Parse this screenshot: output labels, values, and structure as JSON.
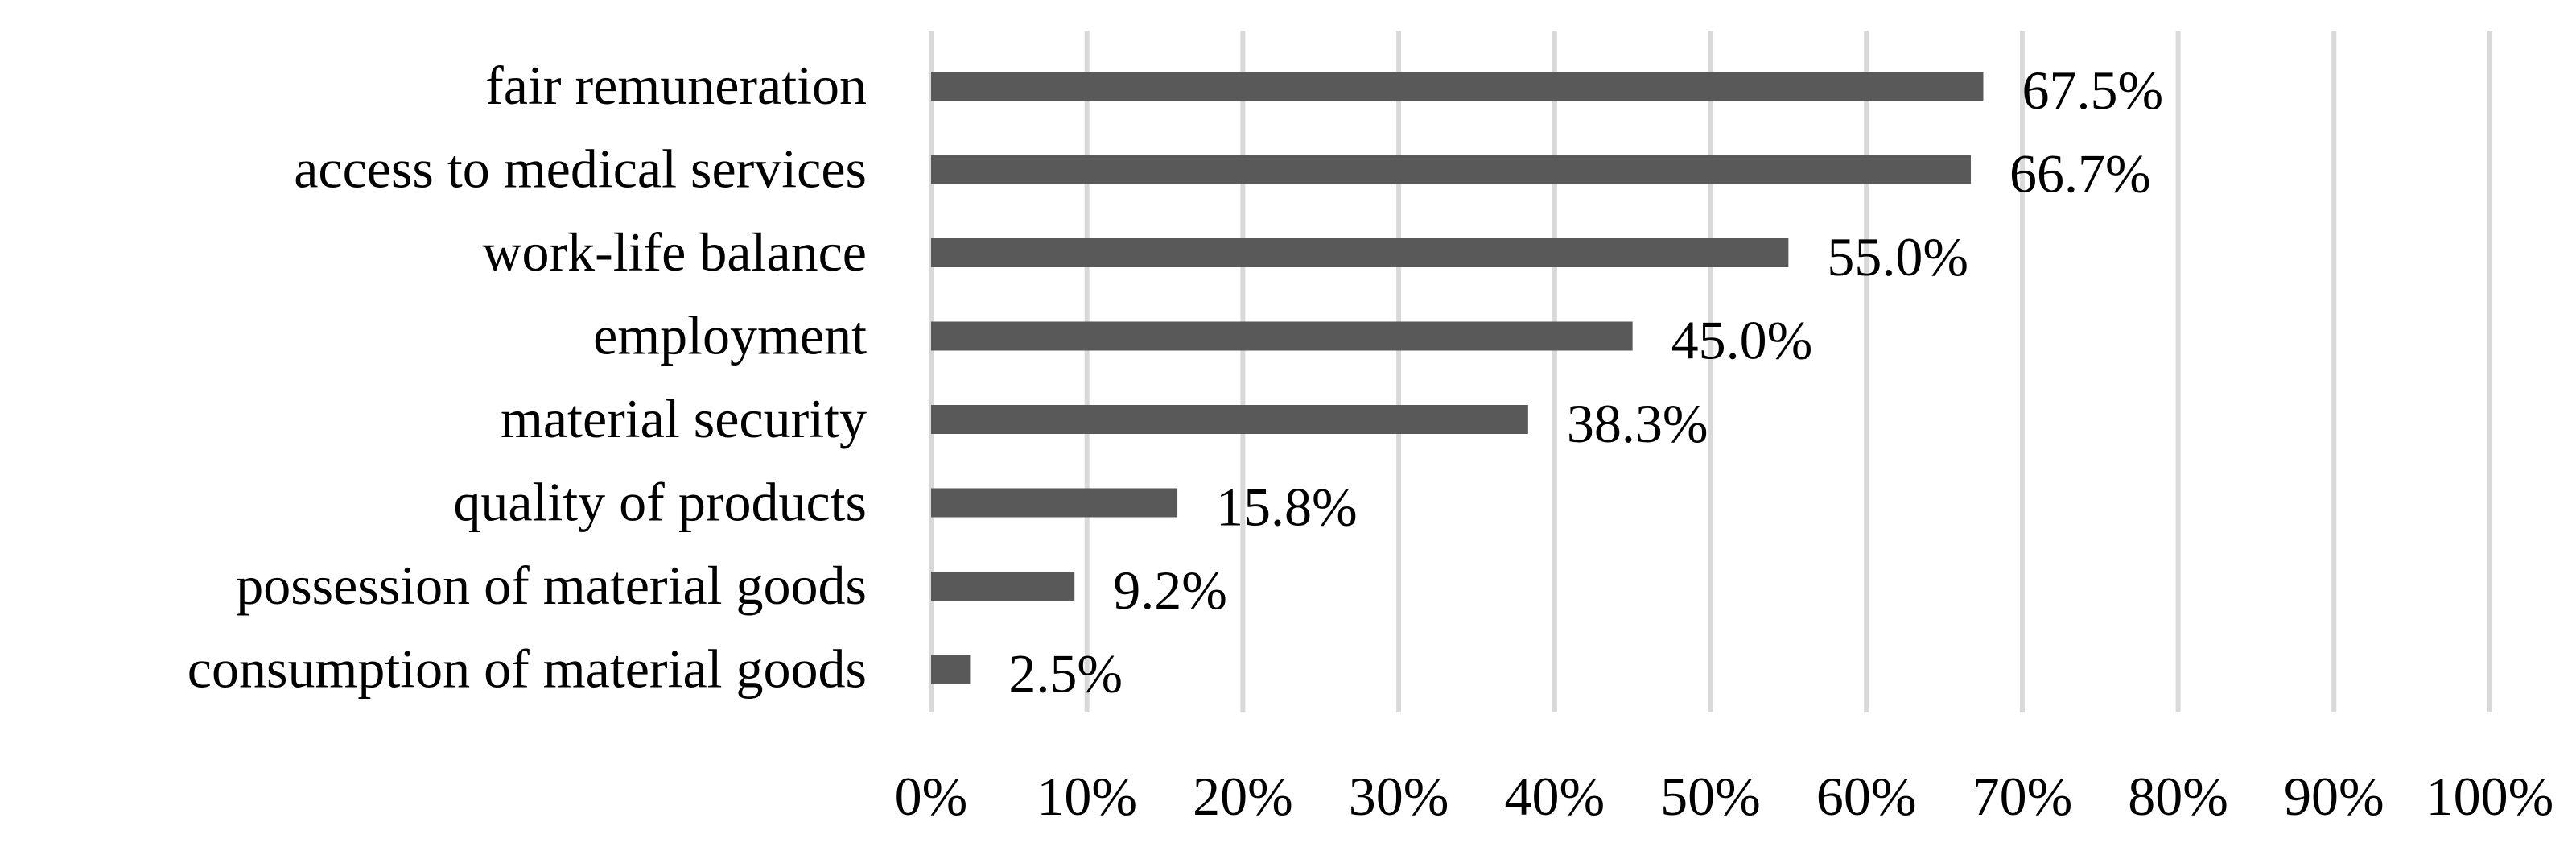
{
  "chart_data": {
    "type": "bar",
    "orientation": "horizontal",
    "categories": [
      "fair remuneration",
      "access to medical services",
      "work-life balance",
      "employment",
      "material security",
      "quality of products",
      "possession of material goods",
      "consumption of material goods"
    ],
    "values": [
      67.5,
      66.7,
      55.0,
      45.0,
      38.3,
      15.8,
      9.2,
      2.5
    ],
    "value_labels": [
      "67.5%",
      "66.7%",
      "55.0%",
      "45.0%",
      "38.3%",
      "15.8%",
      "9.2%",
      "2.5%"
    ],
    "x_ticks": [
      "0%",
      "10%",
      "20%",
      "30%",
      "40%",
      "50%",
      "60%",
      "70%",
      "80%",
      "90%",
      "100%"
    ],
    "xlim": [
      0,
      100
    ],
    "grid": true,
    "legend": false,
    "title": "",
    "xlabel": "",
    "ylabel": "",
    "colors": {
      "bar": "#595959",
      "grid": "#d9d9d9",
      "text": "#000000"
    }
  }
}
